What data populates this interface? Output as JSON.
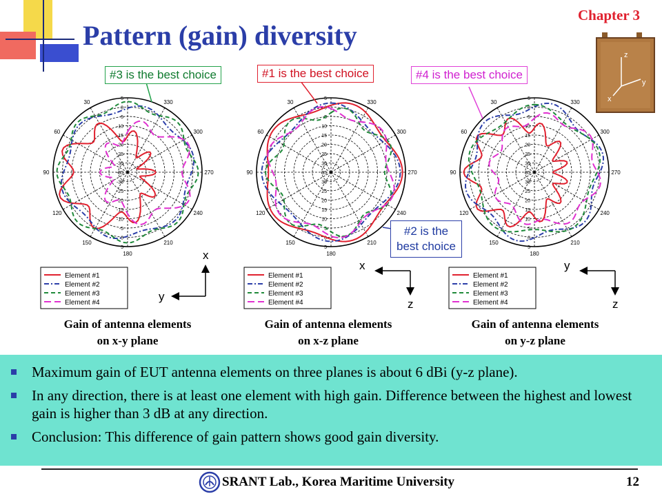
{
  "title": "Pattern (gain) diversity",
  "chapter": "Chapter 3",
  "callouts": {
    "c3": "#3 is the best choice",
    "c1": "#1 is the best choice",
    "c4": "#4 is the best choice",
    "c2_line1": "#2 is the",
    "c2_line2": "best choice"
  },
  "polar": {
    "angle_labels": [
      "330",
      "300",
      "270",
      "240",
      "210",
      "180",
      "150",
      "120",
      "90",
      "60",
      "30"
    ],
    "left_radial_labels": [
      "5",
      "0",
      "-5",
      "-10",
      "-15",
      "-20",
      "-25",
      "-30",
      "-35",
      "-30",
      "-25",
      "-20",
      "-15",
      "-10",
      "-5",
      "0",
      "5"
    ],
    "middle_radial_labels": [
      "5",
      "0",
      "5",
      "10",
      "15",
      "20",
      "25",
      "30",
      "35",
      "30",
      "25",
      "20",
      "15",
      "10",
      "5",
      "0",
      "5"
    ],
    "right_radial_labels": [
      "5",
      "0",
      "5",
      "10",
      "15",
      "20",
      "25",
      "30",
      "35",
      "30",
      "25",
      "20",
      "15",
      "10",
      "5",
      "0",
      "5"
    ]
  },
  "legend": [
    "Element #1",
    "Element #2",
    "Element #3",
    "Element #4"
  ],
  "axes": {
    "xy": {
      "vertical": "x",
      "horizontal": "y"
    },
    "xz": {
      "vertical": "z",
      "horizontal": "x"
    },
    "yz": {
      "vertical": "z",
      "horizontal": "y"
    }
  },
  "captions": {
    "c1_line1": "Gain of antenna elements",
    "c1_line2": "on x-y plane",
    "c2_line1": "Gain of antenna elements",
    "c2_line2": "on x-z plane",
    "c3_line1": "Gain of antenna elements",
    "c3_line2": "on y-z plane"
  },
  "bullets": [
    "Maximum gain of EUT antenna elements on three planes is about 6 dBi (y-z plane).",
    "In any direction, there is at least one element with high gain. Difference between the highest and lowest gain is higher than 3 dB at any direction.",
    "Conclusion: This difference of gain pattern shows good gain diversity."
  ],
  "photo_labels": {
    "z": "z",
    "x": "x",
    "y": "y"
  },
  "footer": "SRANT Lab., Korea Maritime University",
  "page_number": "12",
  "colors": {
    "title": "#2b3ea8",
    "chapter": "#e0202e",
    "element1": "#e0202e",
    "element2": "#2b3ea8",
    "element3": "#1f8a3a",
    "element4": "#e030d0",
    "summary_bg": "#6fe3d0"
  }
}
